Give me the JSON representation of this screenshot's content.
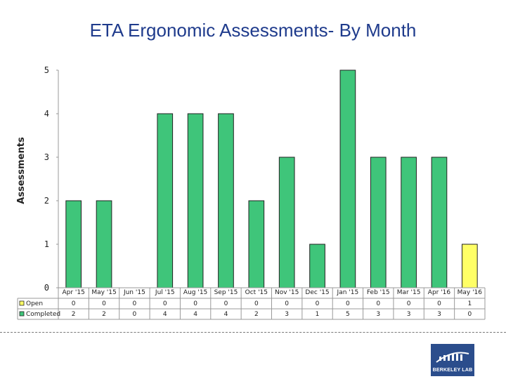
{
  "chart_data": {
    "type": "bar",
    "title": "ETA Ergonomic Assessments- By Month",
    "ylabel": "Assessments",
    "xlabel": "",
    "ylim": [
      0,
      5
    ],
    "yticks": [
      0,
      1,
      2,
      3,
      4,
      5
    ],
    "categories": [
      "Apr '15",
      "May '15",
      "Jun '15",
      "Jul '15",
      "Aug '15",
      "Sep '15",
      "Oct '15",
      "Nov '15",
      "Dec '15",
      "Jan '15",
      "Feb '15",
      "Mar '15",
      "Apr '16",
      "May '16"
    ],
    "series": [
      {
        "name": "Open",
        "values": [
          0,
          0,
          0,
          0,
          0,
          0,
          0,
          0,
          0,
          0,
          0,
          0,
          0,
          1
        ],
        "color": "#ffff66"
      },
      {
        "name": "Completed",
        "values": [
          2,
          2,
          0,
          4,
          4,
          4,
          2,
          3,
          1,
          5,
          3,
          3,
          3,
          0
        ],
        "color": "#3fc57a"
      }
    ],
    "legend": "table-bottom"
  },
  "logo": {
    "text": "BERKELEY LAB"
  }
}
